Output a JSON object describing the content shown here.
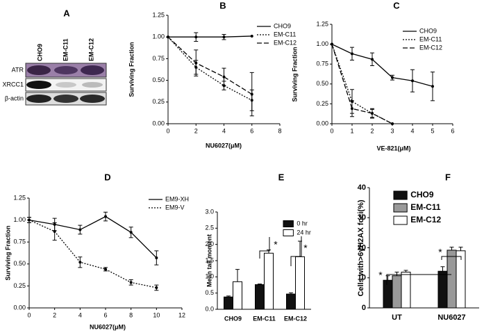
{
  "blot": {
    "label": "A",
    "lanes": [
      "CHO9",
      "EM-C11",
      "EM-C12"
    ],
    "rows": [
      "ATR",
      "XRCC1",
      "β-actin"
    ]
  },
  "chart_data": [
    {
      "type": "line",
      "panel": "B",
      "x_label": "NU6027(μM)",
      "y_label": "Surviving Fraction",
      "xlim": [
        0,
        8
      ],
      "xticks": [
        0,
        2,
        4,
        6,
        8
      ],
      "ylim": [
        0,
        1.25
      ],
      "yticks": [
        {
          "value": 0,
          "label": "0.00"
        },
        {
          "value": 0.25,
          "label": "0.25"
        },
        {
          "value": 0.5,
          "label": "0.50"
        },
        {
          "value": 0.75,
          "label": "0.75"
        },
        {
          "value": 1,
          "label": "1.00"
        },
        {
          "value": 1.25,
          "label": "1.25"
        }
      ],
      "legend": "upper right",
      "series": [
        {
          "name": "CHO9",
          "color": "#000000",
          "dash": "solid",
          "x": [
            0,
            2,
            4,
            6
          ],
          "values": [
            1.0,
            1.0,
            1.0,
            1.01
          ],
          "errors": [
            null,
            0.05,
            0.03,
            null
          ]
        },
        {
          "name": "EM-C11",
          "color": "#000000",
          "dash": "dotted",
          "x": [
            0,
            2,
            4,
            6
          ],
          "values": [
            1.0,
            0.65,
            0.44,
            0.27
          ],
          "errors": [
            null,
            0.08,
            0.05,
            0.12
          ]
        },
        {
          "name": "EM-C12",
          "color": "#000000",
          "dash": "dashed",
          "x": [
            0,
            2,
            4,
            6
          ],
          "values": [
            1.0,
            0.7,
            0.54,
            0.34
          ],
          "errors": [
            null,
            0.15,
            0.1,
            0.25
          ]
        }
      ]
    },
    {
      "type": "line",
      "panel": "C",
      "x_label": "VE-821(μM)",
      "y_label": "Surviving Fraction",
      "xlim": [
        0,
        6
      ],
      "xticks": [
        0,
        1,
        2,
        3,
        4,
        5,
        6
      ],
      "ylim": [
        0,
        1.25
      ],
      "yticks": [
        {
          "value": 0,
          "label": "0.00"
        },
        {
          "value": 0.25,
          "label": "0.25"
        },
        {
          "value": 0.5,
          "label": "0.50"
        },
        {
          "value": 0.75,
          "label": "0.75"
        },
        {
          "value": 1,
          "label": "1.00"
        },
        {
          "value": 1.25,
          "label": "1.25"
        }
      ],
      "legend": "upper right",
      "series": [
        {
          "name": "CHO9",
          "color": "#000000",
          "dash": "solid",
          "x": [
            0,
            1,
            2,
            3,
            4,
            5
          ],
          "values": [
            1.0,
            0.88,
            0.81,
            0.58,
            0.54,
            0.47
          ],
          "errors": [
            null,
            0.08,
            0.08,
            0.03,
            0.14,
            0.18
          ]
        },
        {
          "name": "EM-C11",
          "color": "#000000",
          "dash": "dotted",
          "x": [
            0,
            1,
            2,
            3
          ],
          "values": [
            1.0,
            0.28,
            0.13,
            0.0
          ],
          "errors": [
            null,
            0.15,
            0.06,
            null
          ]
        },
        {
          "name": "EM-C12",
          "color": "#000000",
          "dash": "dashed",
          "x": [
            0,
            1,
            2,
            3
          ],
          "values": [
            1.0,
            0.19,
            0.13,
            0.0
          ],
          "errors": [
            null,
            0.1,
            0.05,
            null
          ]
        }
      ]
    },
    {
      "type": "line",
      "panel": "D",
      "x_label": "NU6027(μM)",
      "y_label": "Surviving Fraction",
      "xlim": [
        0,
        12
      ],
      "xticks": [
        0,
        2,
        4,
        6,
        8,
        10,
        12
      ],
      "ylim": [
        0,
        1.25
      ],
      "yticks": [
        {
          "value": 0,
          "label": "0.00"
        },
        {
          "value": 0.25,
          "label": "0.25"
        },
        {
          "value": 0.5,
          "label": "0.50"
        },
        {
          "value": 0.75,
          "label": "0.75"
        },
        {
          "value": 1,
          "label": "1.00"
        },
        {
          "value": 1.25,
          "label": "1.25"
        }
      ],
      "legend": "upper right",
      "series": [
        {
          "name": "EM9-XH",
          "color": "#000000",
          "dash": "solid",
          "x": [
            0,
            2,
            4,
            6,
            8,
            10
          ],
          "values": [
            1.0,
            0.95,
            0.89,
            1.04,
            0.86,
            0.57
          ],
          "errors": [
            0.03,
            0.07,
            0.05,
            0.05,
            0.06,
            0.08
          ]
        },
        {
          "name": "EM9-V",
          "color": "#000000",
          "dash": "dotted",
          "x": [
            0,
            2,
            4,
            6,
            8,
            10
          ],
          "values": [
            1.0,
            0.87,
            0.52,
            0.44,
            0.29,
            0.23
          ],
          "errors": [
            0.03,
            0.1,
            0.06,
            0.02,
            0.03,
            0.03
          ]
        }
      ]
    },
    {
      "type": "bar",
      "panel": "E",
      "y_label": "Mean tail moment",
      "categories": [
        "CHO9",
        "EM-C11",
        "EM-C12"
      ],
      "ylim": [
        0,
        3
      ],
      "yticks": [
        {
          "value": 0,
          "label": "0.0"
        },
        {
          "value": 0.5,
          "label": "0.5"
        },
        {
          "value": 1,
          "label": "1.0"
        },
        {
          "value": 1.5,
          "label": "1.5"
        },
        {
          "value": 2,
          "label": "2.0"
        },
        {
          "value": 2.5,
          "label": "2.5"
        },
        {
          "value": 3,
          "label": "3.0"
        }
      ],
      "legend": "upper right",
      "annotations": [
        "*",
        "*"
      ],
      "series": [
        {
          "name": "0 hr",
          "color": "#111111",
          "values": [
            0.38,
            0.76,
            0.47
          ],
          "errors": [
            0.03,
            0.02,
            0.04
          ]
        },
        {
          "name": "24 hr",
          "color": "#ffffff",
          "values": [
            0.85,
            1.73,
            1.62
          ],
          "errors": [
            0.38,
            0.1,
            0.48
          ]
        }
      ]
    },
    {
      "type": "bar",
      "panel": "F",
      "y_label": "Cells with>6γH2AX foci(%)",
      "categories": [
        "UT",
        "NU6027"
      ],
      "ylim": [
        0,
        40
      ],
      "yticks": [
        0,
        10,
        20,
        30,
        40
      ],
      "legend": "upper left",
      "annotations": [
        "*",
        "*"
      ],
      "series": [
        {
          "name": "CHO9",
          "color": "#111111",
          "values": [
            9.2,
            12.2
          ],
          "errors": [
            1.5,
            1.5
          ]
        },
        {
          "name": "EM-C11",
          "color": "#999999",
          "values": [
            10.7,
            19.2
          ],
          "errors": [
            1.2,
            1.0
          ]
        },
        {
          "name": "EM-C12",
          "color": "#ffffff",
          "values": [
            11.9,
            19.0
          ],
          "errors": [
            0.6,
            1.2
          ]
        }
      ]
    }
  ]
}
